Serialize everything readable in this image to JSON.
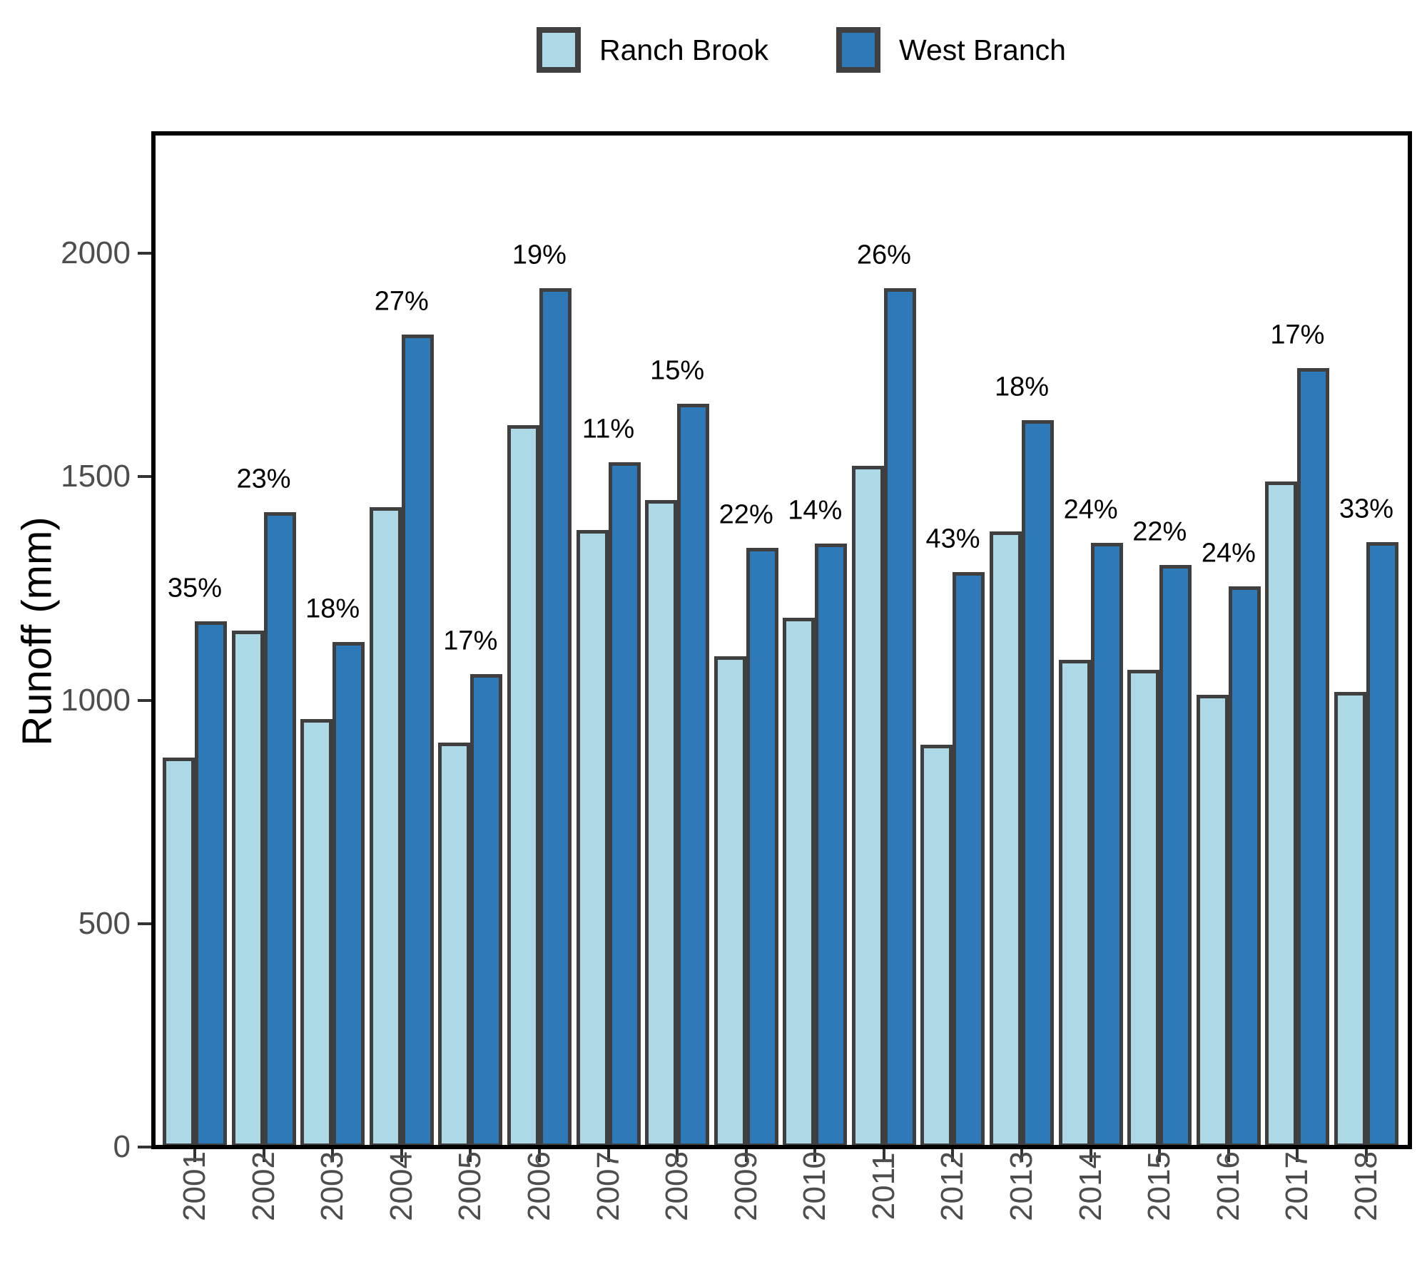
{
  "chart_data": {
    "type": "bar",
    "title": "",
    "ylabel": "Runoff (mm)",
    "categories": [
      "2001",
      "2002",
      "2003",
      "2004",
      "2005",
      "2006",
      "2007",
      "2008",
      "2009",
      "2010",
      "2011",
      "2012",
      "2013",
      "2014",
      "2015",
      "2016",
      "2017",
      "2018"
    ],
    "series": [
      {
        "name": "Ranch Brook",
        "color": "#ADD8E6",
        "values": [
          872,
          1155,
          958,
          1432,
          905,
          1615,
          1380,
          1447,
          1098,
          1185,
          1525,
          900,
          1378,
          1090,
          1068,
          1012,
          1490,
          1018
        ]
      },
      {
        "name": "West Branch",
        "color": "#2E79B7",
        "values": [
          1177,
          1421,
          1130,
          1818,
          1059,
          1922,
          1532,
          1664,
          1340,
          1351,
          1922,
          1287,
          1626,
          1352,
          1303,
          1255,
          1743,
          1354
        ]
      }
    ],
    "bar_labels": [
      "35%",
      "23%",
      "18%",
      "27%",
      "17%",
      "19%",
      "11%",
      "15%",
      "22%",
      "14%",
      "26%",
      "43%",
      "18%",
      "24%",
      "22%",
      "24%",
      "17%",
      "33%"
    ],
    "bar_labels_refer_to": "West Branch",
    "yticks": [
      0,
      500,
      1000,
      1500,
      2000
    ],
    "ylim": [
      0,
      2268
    ],
    "xlabel": "",
    "legend_position": "top-center",
    "grid": false,
    "colors": {
      "bar_outline": "#3F3F3F",
      "panel_border": "#000000",
      "tick_mark": "#333333",
      "tick_label": "#4D4D4D",
      "bar_label_text": "#000000",
      "legend_key_border": "#404040",
      "background": "#FFFFFF"
    }
  }
}
